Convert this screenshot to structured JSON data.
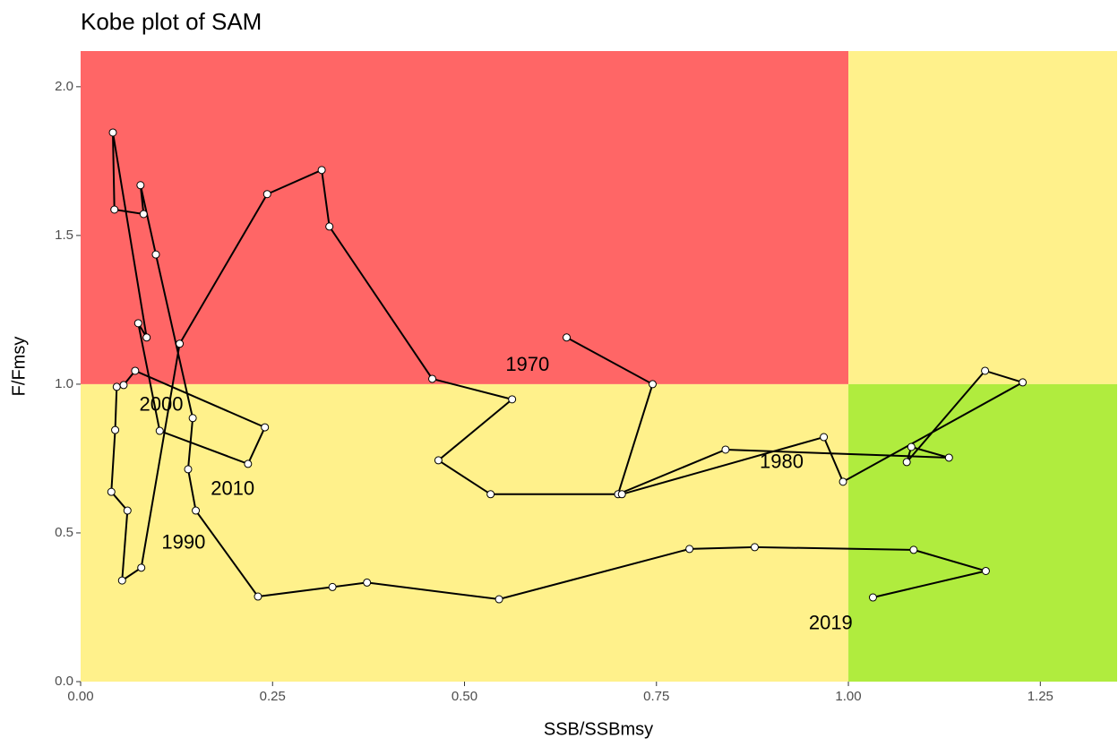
{
  "chart_data": {
    "type": "kobe",
    "title": "Kobe plot of SAM",
    "x_label": "SSB/SSBmsy",
    "y_label": "F/Fmsy",
    "xlim": [
      0,
      1.35
    ],
    "ylim": [
      0,
      2.12
    ],
    "xticks": [
      {
        "value": 0,
        "label": "0.00"
      },
      0.25,
      {
        "value": 0.5,
        "label": "0.50"
      },
      0.75,
      {
        "value": 1,
        "label": "1.00"
      },
      1.25
    ],
    "yticks": [
      {
        "value": 0,
        "label": "0.0"
      },
      0.5,
      {
        "value": 1,
        "label": "1.0"
      },
      1.5,
      {
        "value": 2,
        "label": "2.0"
      }
    ],
    "threshold": 1,
    "zone_colors": {
      "overfished": "#ff6666",
      "caution": "#fff18b",
      "healthy": "#b0ec3e"
    },
    "line_color": "#000000",
    "point_color": "#ffffff",
    "x": [
      0.633,
      0.745,
      0.7,
      0.84,
      1.131,
      1.082,
      1.076,
      1.178,
      1.227,
      0.993,
      0.968,
      0.705,
      0.534,
      0.466,
      0.562,
      0.458,
      0.324,
      0.314,
      0.243,
      0.129,
      0.079,
      0.054,
      0.061,
      0.04,
      0.045,
      0.047,
      0.056,
      0.071,
      0.24,
      0.218,
      0.103,
      0.075,
      0.086,
      0.042,
      0.044,
      0.082,
      0.078,
      0.098,
      0.146,
      0.14,
      0.15,
      0.231,
      0.328,
      0.373,
      0.545,
      0.793,
      0.878,
      1.085,
      1.179,
      1.032
    ],
    "values": [
      1.157,
      1.0,
      0.63,
      0.78,
      0.753,
      0.789,
      0.738,
      1.045,
      1.006,
      0.672,
      0.822,
      0.63,
      0.63,
      0.744,
      0.949,
      1.018,
      1.53,
      1.72,
      1.639,
      1.136,
      0.383,
      0.34,
      0.575,
      0.638,
      0.846,
      0.991,
      0.997,
      1.045,
      0.855,
      0.732,
      0.843,
      1.205,
      1.157,
      1.846,
      1.587,
      1.572,
      1.669,
      1.436,
      0.886,
      0.714,
      0.575,
      0.286,
      0.318,
      0.333,
      0.277,
      0.446,
      0.452,
      0.443,
      0.372,
      0.283
    ],
    "annotations": [
      {
        "text": "1970",
        "x": 0.582,
        "y": 1.063
      },
      {
        "text": "1980",
        "x": 0.913,
        "y": 0.735
      },
      {
        "text": "1990",
        "x": 0.134,
        "y": 0.464
      },
      {
        "text": "2000",
        "x": 0.105,
        "y": 0.928
      },
      {
        "text": "2010",
        "x": 0.198,
        "y": 0.645
      },
      {
        "text": "2019",
        "x": 0.977,
        "y": 0.193
      }
    ]
  }
}
